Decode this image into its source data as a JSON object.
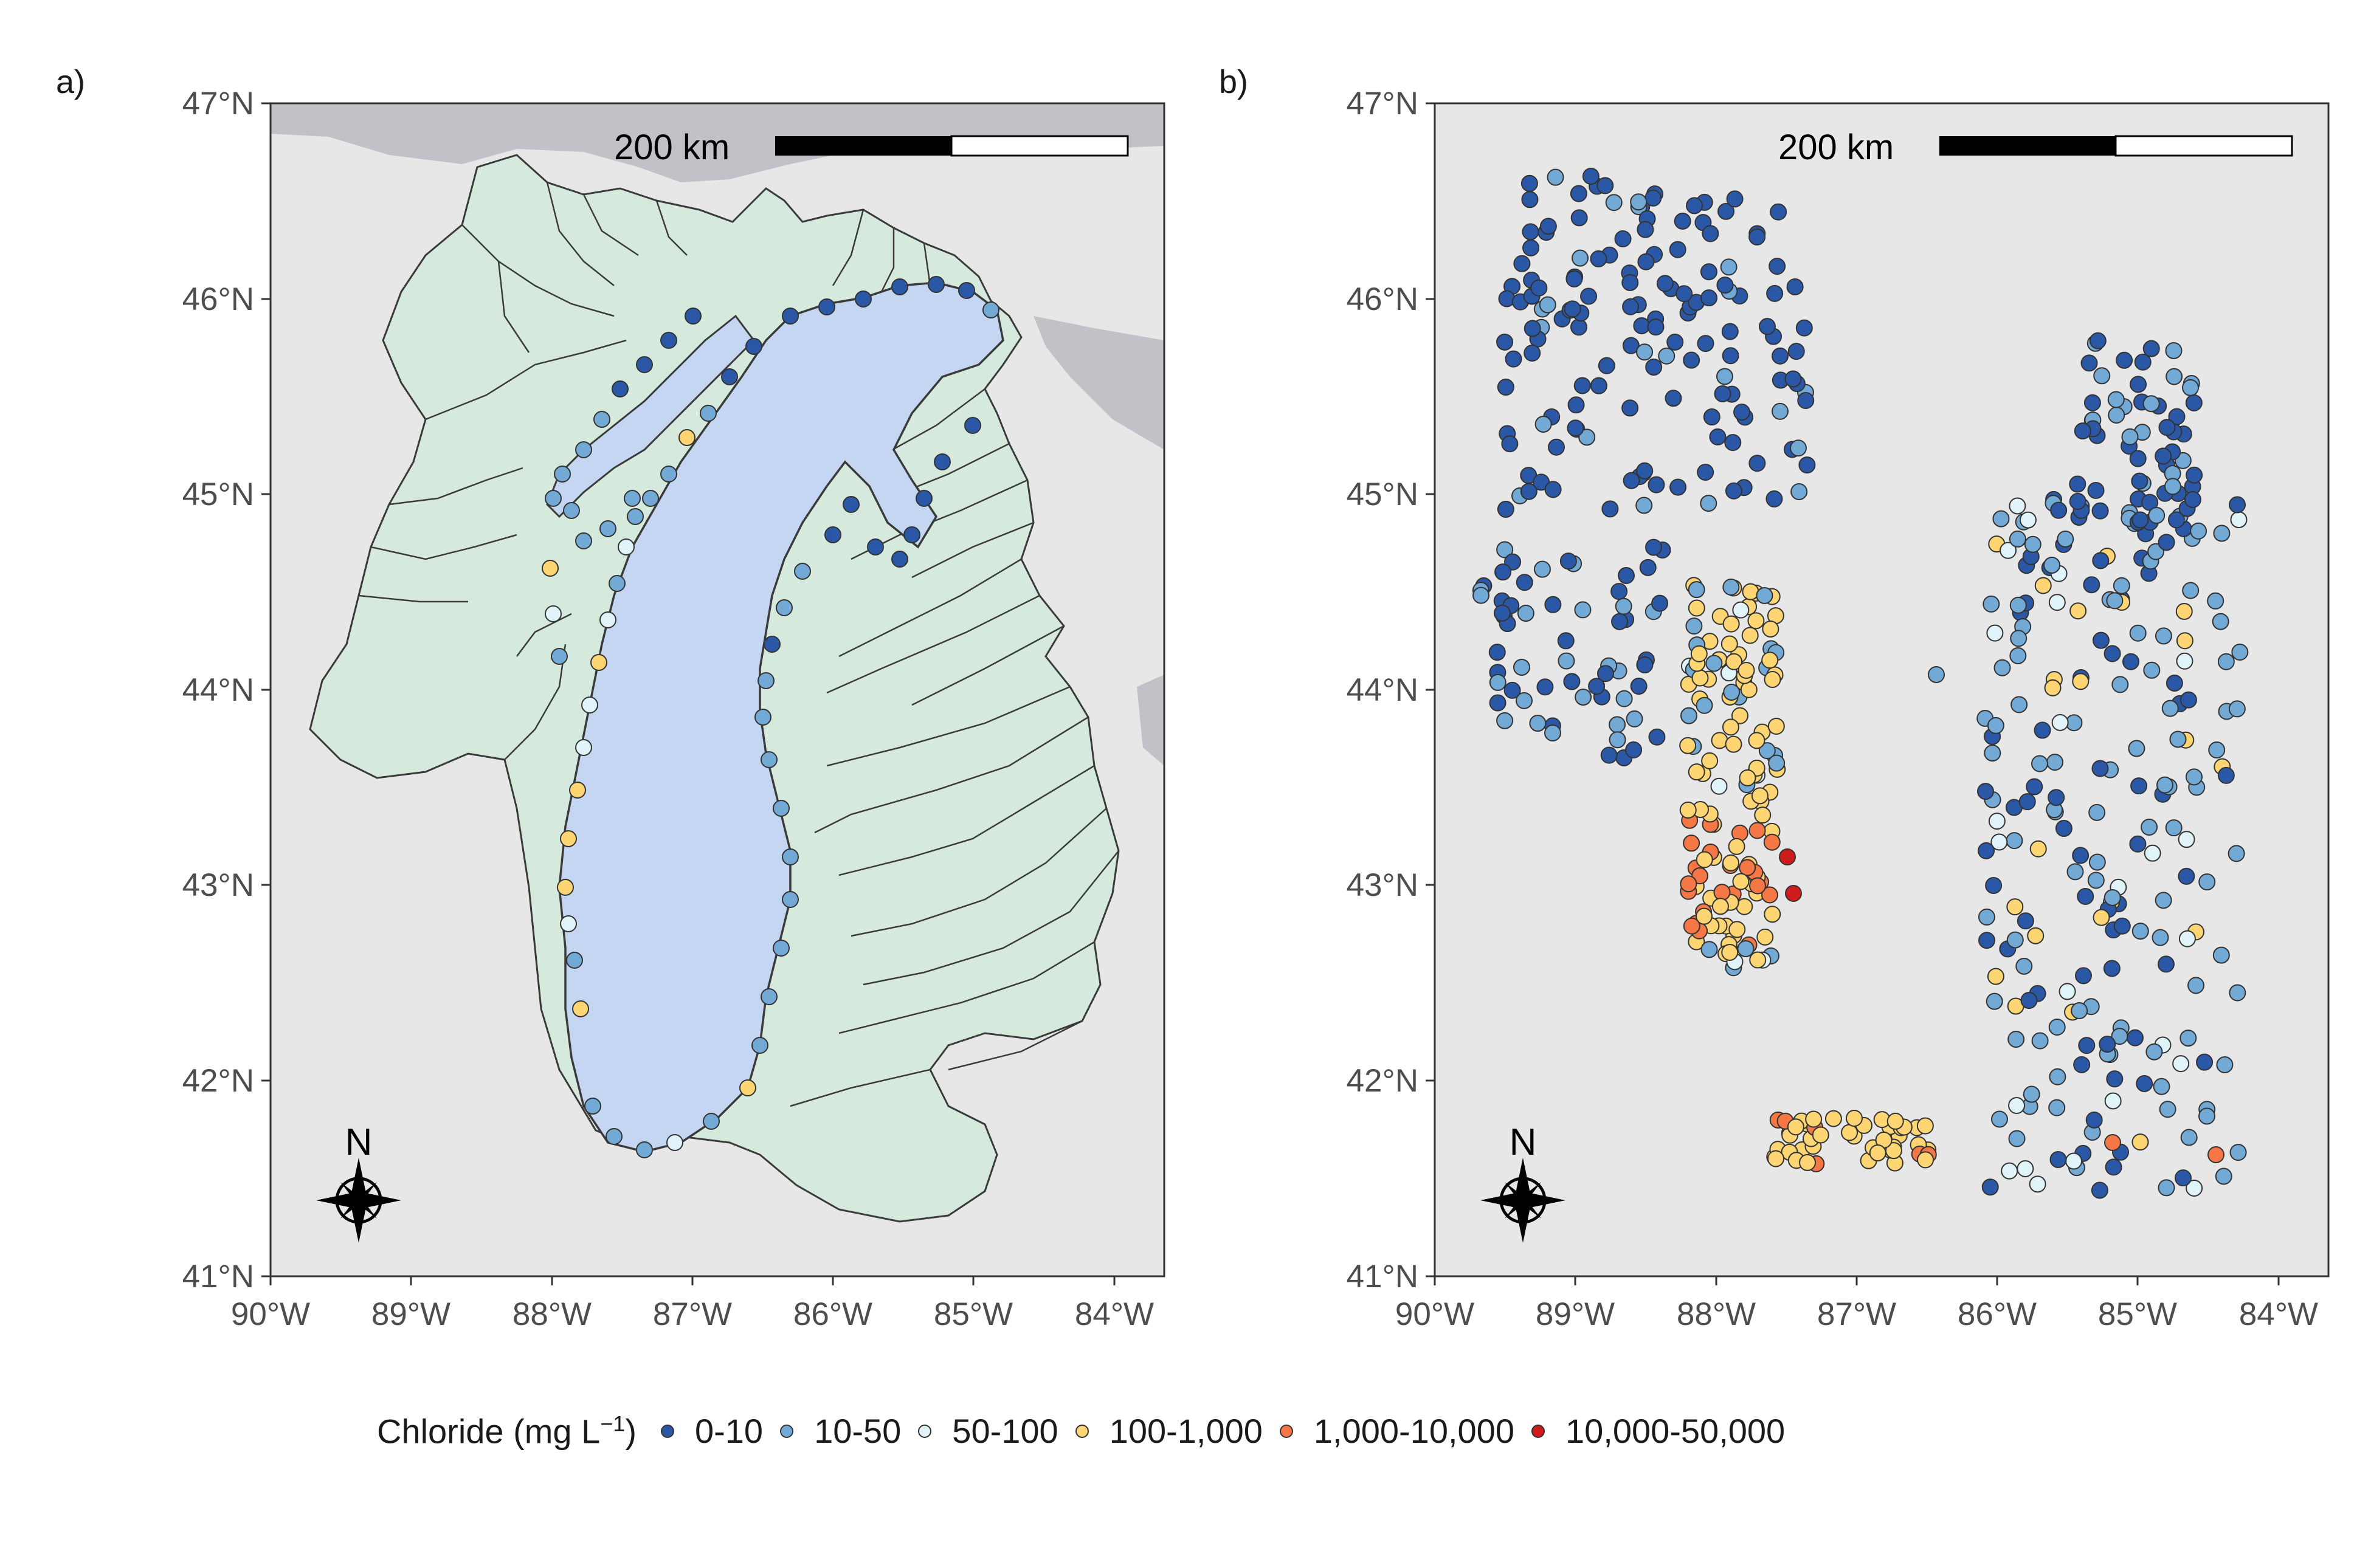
{
  "panels": [
    {
      "tag": "a)",
      "scale_label": "200 km",
      "north_label": "N"
    },
    {
      "tag": "b)",
      "scale_label": "200 km",
      "north_label": "N"
    }
  ],
  "axes": {
    "x_ticks": [
      "90°W",
      "89°W",
      "88°W",
      "87°W",
      "86°W",
      "85°W",
      "84°W"
    ],
    "y_ticks": [
      "47°N",
      "46°N",
      "45°N",
      "44°N",
      "43°N",
      "42°N",
      "41°N"
    ],
    "lon_range": [
      -90,
      -83.65
    ],
    "lat_range": [
      41,
      47
    ]
  },
  "legend": {
    "title_prefix": "Chloride (mg L",
    "title_sup": "−1",
    "title_suffix": ")",
    "items": [
      {
        "label": "0-10",
        "color": "#2b58a6"
      },
      {
        "label": "10-50",
        "color": "#73a9d5"
      },
      {
        "label": "50-100",
        "color": "#e0f3f8"
      },
      {
        "label": "100-1,000",
        "color": "#fdd572"
      },
      {
        "label": "1,000-10,000",
        "color": "#f57745"
      },
      {
        "label": "10,000-50,000",
        "color": "#d01c1d"
      }
    ]
  },
  "colors": {
    "background_map": "#e7e7e7",
    "water_lake_michigan": "#c4d6f2",
    "other_water": "#c1c1c8",
    "watershed_fill": "#d6e9dd",
    "watershed_line": "#3a3a3a"
  }
}
